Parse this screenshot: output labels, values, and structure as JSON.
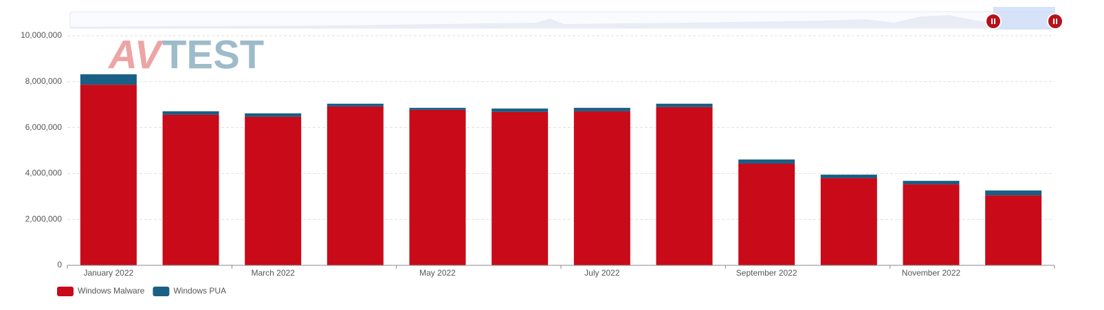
{
  "chart_data": {
    "type": "stacked_bar",
    "watermark": [
      "AV",
      "TEST"
    ],
    "categories": [
      "January 2022",
      null,
      "March 2022",
      null,
      "May 2022",
      null,
      "July 2022",
      null,
      "September 2022",
      null,
      "November 2022",
      null
    ],
    "series": [
      {
        "name": "Windows Malware",
        "color": "#c80a19",
        "values": [
          7870000,
          6560000,
          6470000,
          6920000,
          6770000,
          6680000,
          6710000,
          6890000,
          4430000,
          3800000,
          3530000,
          3050000
        ]
      },
      {
        "name": "Windows PUA",
        "color": "#1a5f85",
        "values": [
          450000,
          150000,
          150000,
          120000,
          90000,
          150000,
          150000,
          150000,
          180000,
          150000,
          150000,
          210000
        ]
      }
    ],
    "ylim": [
      0,
      10000000
    ],
    "yticks": [
      0,
      {
        "value": 2000000,
        "label": "2,000,000"
      },
      {
        "value": 4000000,
        "label": "4,000,000"
      },
      {
        "value": 6000000,
        "label": "6,000,000"
      },
      {
        "value": 8000000,
        "label": "8,000,000"
      },
      {
        "value": 10000000,
        "label": "10,000,000"
      }
    ],
    "grid": true,
    "legend": "bottom-left"
  }
}
